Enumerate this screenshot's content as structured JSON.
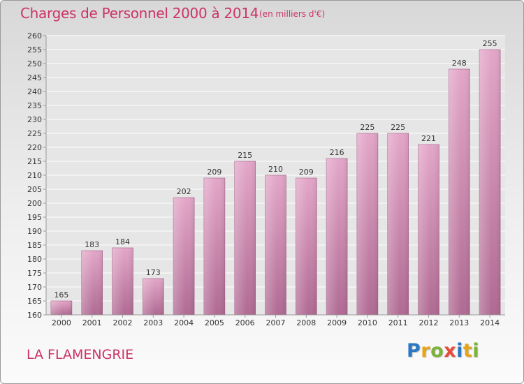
{
  "header": {
    "title": "Charges de Personnel 2000 à 2014",
    "subtitle": "(en milliers d'€)"
  },
  "footer": {
    "place": "LA FLAMENGRIE",
    "brand": {
      "text": "Proxiti",
      "letters": [
        {
          "char": "P",
          "color": "#2b78c2"
        },
        {
          "char": "r",
          "color": "#e8a317"
        },
        {
          "char": "o",
          "color": "#7bb33a"
        },
        {
          "char": "x",
          "color": "#e84b3c"
        },
        {
          "char": "i",
          "color": "#2b78c2"
        },
        {
          "char": "t",
          "color": "#e8a317"
        },
        {
          "char": "i",
          "color": "#7bb33a"
        }
      ]
    }
  },
  "chart_data": {
    "type": "bar",
    "title": "Charges de Personnel 2000 à 2014",
    "subtitle": "(en milliers d'€)",
    "categories": [
      "2000",
      "2001",
      "2002",
      "2003",
      "2004",
      "2005",
      "2006",
      "2007",
      "2008",
      "2009",
      "2010",
      "2011",
      "2012",
      "2013",
      "2014"
    ],
    "values": [
      165,
      183,
      184,
      173,
      202,
      209,
      215,
      210,
      209,
      216,
      225,
      225,
      221,
      248,
      255
    ],
    "ylim": [
      160,
      260
    ],
    "ytick_step": 5,
    "grid": true,
    "bar_color": "#d98fb8",
    "bar_color_dark": "#b56a95",
    "plot_background": "#e6e6e6"
  }
}
